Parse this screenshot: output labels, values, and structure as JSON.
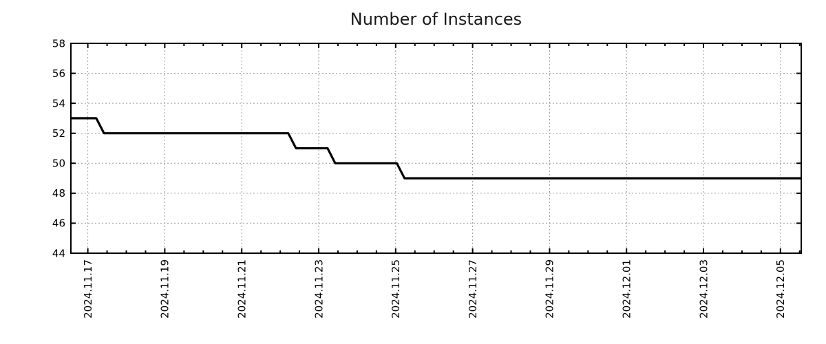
{
  "chart_data": {
    "type": "line",
    "line_style": "step",
    "title": "Number of Instances",
    "xlabel": "",
    "ylabel": "",
    "legend": "none",
    "grid": "dotted",
    "background_color": "#ffffff",
    "line_color": "#000000",
    "grid_color": "#9a9a9a",
    "axis_color": "#000000",
    "tick_label_color": "#000000",
    "ylim": [
      44,
      58
    ],
    "y_ticks": [
      44,
      46,
      48,
      50,
      52,
      54,
      56,
      58
    ],
    "xlim_days": [
      -0.44,
      18.54
    ],
    "x_minor_tick_interval_days": 0.5,
    "x_ticks": [
      {
        "day": 0,
        "label": "2024.11.17"
      },
      {
        "day": 2,
        "label": "2024.11.19"
      },
      {
        "day": 4,
        "label": "2024.11.21"
      },
      {
        "day": 6,
        "label": "2024.11.23"
      },
      {
        "day": 8,
        "label": "2024.11.25"
      },
      {
        "day": 10,
        "label": "2024.11.27"
      },
      {
        "day": 12,
        "label": "2024.11.29"
      },
      {
        "day": 14,
        "label": "2024.12.01"
      },
      {
        "day": 16,
        "label": "2024.12.03"
      },
      {
        "day": 18,
        "label": "2024.12.05"
      }
    ],
    "series": [
      {
        "name": "Number of Instances",
        "points": [
          {
            "time": "2024-11-16 13:30",
            "day": -0.44,
            "value": 53
          },
          {
            "time": "2024-11-17 05:20",
            "day": 0.22,
            "value": 53
          },
          {
            "time": "2024-11-17 10:05",
            "day": 0.42,
            "value": 52
          },
          {
            "time": "2024-11-22 05:00",
            "day": 5.21,
            "value": 52
          },
          {
            "time": "2024-11-22 09:50",
            "day": 5.41,
            "value": 51
          },
          {
            "time": "2024-11-23 05:30",
            "day": 6.23,
            "value": 51
          },
          {
            "time": "2024-11-23 10:20",
            "day": 6.43,
            "value": 50
          },
          {
            "time": "2024-11-25 00:45",
            "day": 8.03,
            "value": 50
          },
          {
            "time": "2024-11-25 05:30",
            "day": 8.23,
            "value": 49
          },
          {
            "time": "2024-12-05 13:00",
            "day": 18.54,
            "value": 49
          }
        ]
      }
    ]
  }
}
